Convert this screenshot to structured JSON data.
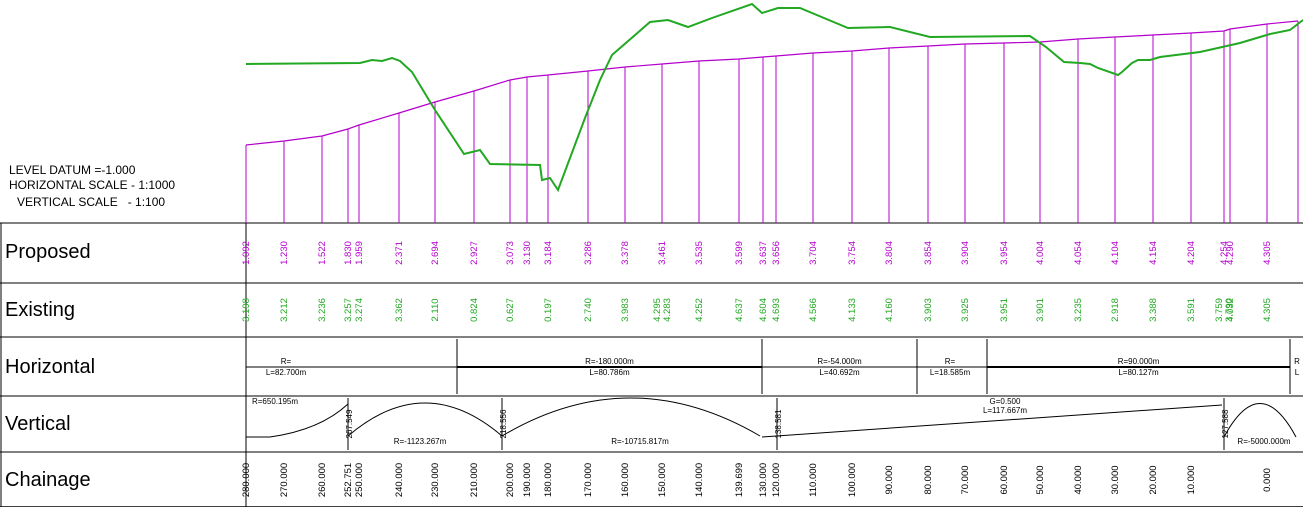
{
  "header": {
    "level_datum": "LEVEL DATUM =-1.000",
    "horizontal_scale": "HORIZONTAL SCALE - 1:1000",
    "vertical_scale": "VERTICAL SCALE   - 1:100"
  },
  "rows": {
    "proposed": "Proposed",
    "existing": "Existing",
    "horizontal": "Horizontal",
    "vertical": "Vertical",
    "chainage": "Chainage"
  },
  "colors": {
    "proposed": "#b400cc",
    "existing": "#22a822",
    "grid": "#000000"
  },
  "stations": [
    {
      "ch": "280.000",
      "prop": "1.092",
      "ex": "3.198"
    },
    {
      "ch": "270.000",
      "prop": "1.230",
      "ex": "3.212"
    },
    {
      "ch": "260.000",
      "prop": "1.522",
      "ex": "3.236"
    },
    {
      "ch": "252.751",
      "prop": "1.830",
      "ex": "3.257"
    },
    {
      "ch": "250.000",
      "prop": "1.959",
      "ex": "3.274"
    },
    {
      "ch": "240.000",
      "prop": "2.371",
      "ex": "3.362"
    },
    {
      "ch": "230.000",
      "prop": "2.694",
      "ex": "2.110"
    },
    {
      "ch": "210.000",
      "prop": "2.927",
      "ex": "0.824"
    },
    {
      "ch": "200.000",
      "prop": "3.073",
      "ex": "0.627"
    },
    {
      "ch": "190.000",
      "prop": "3.130",
      "ex": ""
    },
    {
      "ch": "180.000",
      "prop": "3.184",
      "ex": "0.197"
    },
    {
      "ch": "170.000",
      "prop": "3.286",
      "ex": "2.740"
    },
    {
      "ch": "160.000",
      "prop": "3.378",
      "ex": "3.983"
    },
    {
      "ch": "150.000",
      "prop": "3.461",
      "ex": "4.295\n4.283"
    },
    {
      "ch": "140.000",
      "prop": "3.535",
      "ex": "4.252"
    },
    {
      "ch": "139.699",
      "prop": "3.599",
      "ex": "4.637"
    },
    {
      "ch": "130.000",
      "prop": "3.637",
      "ex": "4.604"
    },
    {
      "ch": "120.000",
      "prop": "3.656",
      "ex": "4.693"
    },
    {
      "ch": "110.000",
      "prop": "3.704",
      "ex": "4.566"
    },
    {
      "ch": "100.000",
      "prop": "3.754",
      "ex": "4.133"
    },
    {
      "ch": "90.000",
      "prop": "3.804",
      "ex": "4.160"
    },
    {
      "ch": "80.000",
      "prop": "3.854",
      "ex": "3.903"
    },
    {
      "ch": "70.000",
      "prop": "3.904",
      "ex": "3.925"
    },
    {
      "ch": "60.000",
      "prop": "3.954",
      "ex": "3.951"
    },
    {
      "ch": "50.000",
      "prop": "4.004",
      "ex": "3.901"
    },
    {
      "ch": "40.000",
      "prop": "4.054",
      "ex": "3.235"
    },
    {
      "ch": "30.000",
      "prop": "4.104",
      "ex": "2.918"
    },
    {
      "ch": "20.000",
      "prop": "4.154",
      "ex": "3.388"
    },
    {
      "ch": "10.000",
      "prop": "4.204",
      "ex": "3.591"
    },
    {
      "ch": "",
      "prop": "4.254",
      "ex": "3.759\n3.790"
    },
    {
      "ch": "",
      "prop": "4.290",
      "ex": "4.032"
    },
    {
      "ch": "0.000",
      "prop": "4.305",
      "ex": "4.305"
    }
  ],
  "horizontal_alignment": [
    {
      "line1": "R=",
      "line2": "L=82.700m"
    },
    {
      "line1": "R=-180.000m",
      "line2": "L=80.786m"
    },
    {
      "line1": "R=-54.000m",
      "line2": "L=40.692m"
    },
    {
      "line1": "R=",
      "line2": "L=18.585m"
    },
    {
      "line1": "R=90.000m",
      "line2": "L=80.127m"
    },
    {
      "line1": "R",
      "line2": "L"
    }
  ],
  "vertical_alignment": {
    "labels": [
      "R=650.195m",
      "R=-1123.267m",
      "R=-10715.817m",
      "G=0.500",
      "L=117.667m",
      "R=-5000.000m"
    ],
    "ips": [
      "267.549",
      "218.556",
      "138.581",
      "127.588"
    ]
  }
}
